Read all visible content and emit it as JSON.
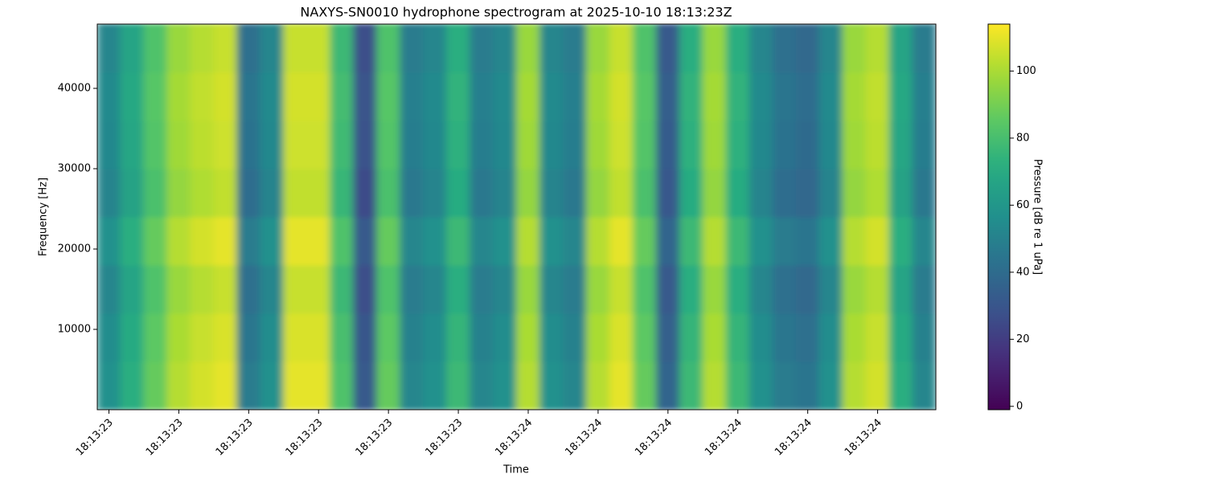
{
  "chart_data": {
    "type": "heatmap",
    "title": "NAXYS-SN0010 hydrophone spectrogram at 2025-10-10 18:13:23Z",
    "x_label": "Time",
    "y_label": "Frequency [Hz]",
    "colorbar_label": "Pressure [dB re 1 uPa]",
    "colormap": "viridis",
    "categories": [
      "18:13:23",
      null,
      null,
      "18:13:23",
      null,
      null,
      "18:13:23",
      null,
      null,
      "18:13:23",
      null,
      null,
      "18:13:23",
      null,
      null,
      "18:13:23",
      null,
      null,
      "18:13:24",
      null,
      null,
      "18:13:24",
      null,
      null,
      "18:13:24",
      null,
      null,
      "18:13:24",
      null,
      null,
      "18:13:24",
      null,
      null,
      "18:13:24",
      null,
      null
    ],
    "ybins": [
      0,
      6000,
      12000,
      18000,
      24000,
      30000,
      36000,
      42000,
      48000
    ],
    "ylim": [
      0,
      48000
    ],
    "yticks": [
      10000,
      20000,
      30000,
      40000
    ],
    "clim": [
      -1,
      114
    ],
    "cticks": [
      0,
      20,
      40,
      60,
      80,
      100
    ],
    "values": [
      [
        57,
        72,
        87,
        102,
        107,
        110,
        47,
        57,
        110,
        110,
        82,
        32,
        87,
        52,
        57,
        77,
        52,
        57,
        102,
        57,
        52,
        102,
        110,
        87,
        37,
        77,
        102,
        77,
        57,
        47,
        44,
        57,
        102,
        107,
        72,
        52
      ],
      [
        55,
        70,
        85,
        100,
        105,
        108,
        45,
        55,
        108,
        108,
        80,
        30,
        85,
        50,
        55,
        75,
        50,
        55,
        100,
        55,
        50,
        100,
        108,
        85,
        35,
        75,
        100,
        75,
        55,
        45,
        42,
        55,
        100,
        105,
        70,
        50
      ],
      [
        52,
        67,
        82,
        97,
        102,
        105,
        42,
        52,
        105,
        105,
        77,
        27,
        82,
        47,
        52,
        72,
        47,
        52,
        97,
        52,
        47,
        97,
        105,
        82,
        32,
        72,
        97,
        72,
        52,
        42,
        39,
        52,
        97,
        102,
        67,
        47
      ],
      [
        57,
        72,
        87,
        102,
        107,
        110,
        47,
        57,
        110,
        110,
        82,
        32,
        87,
        52,
        57,
        77,
        52,
        57,
        102,
        57,
        52,
        102,
        110,
        87,
        37,
        77,
        102,
        77,
        57,
        47,
        44,
        57,
        102,
        107,
        72,
        52
      ],
      [
        51,
        66,
        81,
        96,
        101,
        104,
        41,
        51,
        104,
        104,
        76,
        26,
        81,
        46,
        51,
        71,
        46,
        51,
        96,
        51,
        46,
        96,
        104,
        81,
        31,
        71,
        96,
        71,
        51,
        41,
        38,
        51,
        96,
        101,
        66,
        46
      ],
      [
        53,
        68,
        83,
        98,
        103,
        106,
        43,
        53,
        106,
        106,
        78,
        28,
        83,
        48,
        53,
        73,
        48,
        53,
        98,
        53,
        48,
        98,
        106,
        83,
        33,
        73,
        98,
        73,
        53,
        43,
        40,
        53,
        98,
        103,
        68,
        48
      ],
      [
        54,
        69,
        84,
        99,
        104,
        107,
        44,
        54,
        107,
        107,
        79,
        29,
        84,
        49,
        54,
        74,
        49,
        54,
        99,
        54,
        49,
        99,
        107,
        84,
        34,
        74,
        99,
        74,
        54,
        44,
        41,
        54,
        99,
        104,
        69,
        49
      ],
      [
        52,
        67,
        82,
        97,
        102,
        105,
        42,
        52,
        105,
        105,
        77,
        27,
        82,
        47,
        52,
        72,
        47,
        52,
        97,
        52,
        47,
        97,
        105,
        82,
        32,
        72,
        97,
        72,
        52,
        42,
        39,
        52,
        97,
        102,
        67,
        47
      ]
    ]
  }
}
